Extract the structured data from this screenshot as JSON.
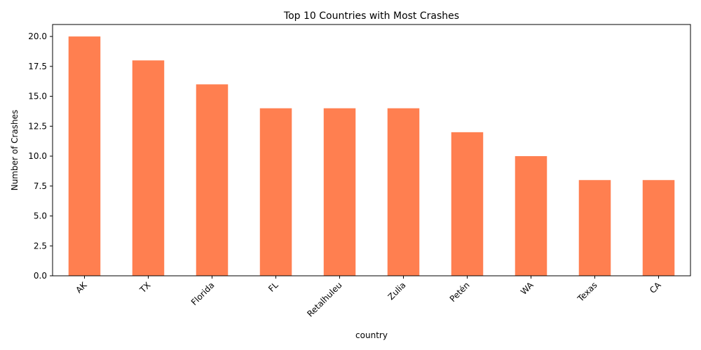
{
  "chart_data": {
    "type": "bar",
    "title": "Top 10 Countries with Most Crashes",
    "xlabel": "country",
    "ylabel": "Number of Crashes",
    "categories": [
      "AK",
      "TX",
      "Florida",
      "FL",
      "Retalhuleu",
      "Zulia",
      "Petén",
      "WA",
      "Texas",
      "CA"
    ],
    "values": [
      20,
      18,
      16,
      14,
      14,
      14,
      12,
      10,
      8,
      8
    ],
    "ylim": [
      0,
      21
    ],
    "yticks": [
      "0.0",
      "2.5",
      "5.0",
      "7.5",
      "10.0",
      "12.5",
      "15.0",
      "17.5",
      "20.0"
    ],
    "bar_color": "#ff7f50",
    "grid": false,
    "legend": false
  }
}
